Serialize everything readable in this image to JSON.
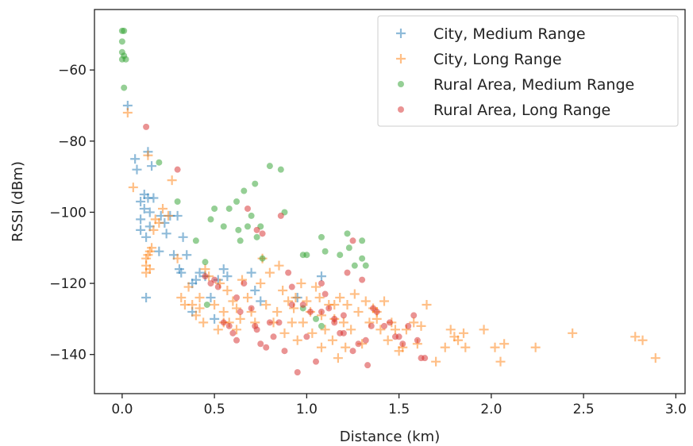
{
  "chart_data": {
    "type": "scatter",
    "title": "",
    "xlabel": "Distance (km)",
    "ylabel": "RSSI (dBm)",
    "xlim": [
      -0.15,
      3.05
    ],
    "ylim": [
      -151,
      -43
    ],
    "xticks": [
      0.0,
      0.5,
      1.0,
      1.5,
      2.0,
      2.5,
      3.0
    ],
    "xtick_labels": [
      "0.0",
      "0.5",
      "1.0",
      "1.5",
      "2.0",
      "2.5",
      "3.0"
    ],
    "yticks": [
      -60,
      -80,
      -100,
      -120,
      -140
    ],
    "ytick_labels": [
      "−60",
      "−80",
      "−100",
      "−120",
      "−140"
    ],
    "grid": false,
    "legend_position": "top-right",
    "series": [
      {
        "name": "City, Medium Range",
        "marker": "plus",
        "color": "#1f77b4",
        "points": [
          [
            0.03,
            -70
          ],
          [
            0.07,
            -85
          ],
          [
            0.08,
            -88
          ],
          [
            0.1,
            -97
          ],
          [
            0.1,
            -102
          ],
          [
            0.1,
            -105
          ],
          [
            0.12,
            -95
          ],
          [
            0.12,
            -99
          ],
          [
            0.13,
            -107
          ],
          [
            0.14,
            -96
          ],
          [
            0.15,
            -100
          ],
          [
            0.15,
            -104
          ],
          [
            0.16,
            -87
          ],
          [
            0.14,
            -83
          ],
          [
            0.17,
            -96
          ],
          [
            0.13,
            -124
          ],
          [
            0.2,
            -111
          ],
          [
            0.21,
            -101
          ],
          [
            0.23,
            -103
          ],
          [
            0.24,
            -106
          ],
          [
            0.26,
            -101
          ],
          [
            0.28,
            -112
          ],
          [
            0.3,
            -101
          ],
          [
            0.31,
            -116
          ],
          [
            0.33,
            -107
          ],
          [
            0.35,
            -112
          ],
          [
            0.38,
            -120
          ],
          [
            0.4,
            -119
          ],
          [
            0.42,
            -117
          ],
          [
            0.45,
            -118
          ],
          [
            0.48,
            -124
          ],
          [
            0.5,
            -130
          ],
          [
            0.52,
            -119
          ],
          [
            0.55,
            -116
          ],
          [
            0.57,
            -118
          ],
          [
            0.7,
            -117
          ],
          [
            0.72,
            -122
          ],
          [
            0.75,
            -125
          ],
          [
            1.08,
            -118
          ],
          [
            0.95,
            -124
          ],
          [
            0.38,
            -128
          ],
          [
            0.32,
            -117
          ]
        ]
      },
      {
        "name": "City, Long Range",
        "marker": "plus",
        "color": "#ff7f0e",
        "points": [
          [
            0.03,
            -72
          ],
          [
            0.06,
            -93
          ],
          [
            0.13,
            -115
          ],
          [
            0.13,
            -113
          ],
          [
            0.13,
            -117
          ],
          [
            0.14,
            -112
          ],
          [
            0.15,
            -111
          ],
          [
            0.15,
            -116
          ],
          [
            0.16,
            -110
          ],
          [
            0.17,
            -105
          ],
          [
            0.18,
            -102
          ],
          [
            0.2,
            -103
          ],
          [
            0.22,
            -99
          ],
          [
            0.25,
            -101
          ],
          [
            0.27,
            -91
          ],
          [
            0.14,
            -84
          ],
          [
            0.3,
            -113
          ],
          [
            0.32,
            -124
          ],
          [
            0.34,
            -126
          ],
          [
            0.36,
            -121
          ],
          [
            0.38,
            -126
          ],
          [
            0.4,
            -129
          ],
          [
            0.42,
            -124
          ],
          [
            0.44,
            -131
          ],
          [
            0.45,
            -116
          ],
          [
            0.47,
            -118
          ],
          [
            0.5,
            -126
          ],
          [
            0.52,
            -133
          ],
          [
            0.53,
            -120
          ],
          [
            0.55,
            -128
          ],
          [
            0.57,
            -122
          ],
          [
            0.58,
            -131
          ],
          [
            0.6,
            -125
          ],
          [
            0.62,
            -127
          ],
          [
            0.64,
            -130
          ],
          [
            0.65,
            -119
          ],
          [
            0.68,
            -124
          ],
          [
            0.7,
            -128
          ],
          [
            0.72,
            -131
          ],
          [
            0.75,
            -120
          ],
          [
            0.76,
            -113
          ],
          [
            0.78,
            -126
          ],
          [
            0.8,
            -117
          ],
          [
            0.82,
            -131
          ],
          [
            0.84,
            -128
          ],
          [
            0.85,
            -115
          ],
          [
            0.87,
            -122
          ],
          [
            0.88,
            -134
          ],
          [
            0.9,
            -125
          ],
          [
            0.92,
            -131
          ],
          [
            0.94,
            -124
          ],
          [
            0.95,
            -136
          ],
          [
            0.97,
            -120
          ],
          [
            0.98,
            -131
          ],
          [
            1.0,
            -125
          ],
          [
            1.02,
            -128
          ],
          [
            1.03,
            -134
          ],
          [
            1.05,
            -121
          ],
          [
            1.07,
            -124
          ],
          [
            1.08,
            -129
          ],
          [
            1.1,
            -133
          ],
          [
            1.12,
            -126
          ],
          [
            1.14,
            -136
          ],
          [
            1.15,
            -130
          ],
          [
            1.17,
            -141
          ],
          [
            1.18,
            -124
          ],
          [
            1.2,
            -131
          ],
          [
            1.21,
            -138
          ],
          [
            1.22,
            -126
          ],
          [
            1.24,
            -133
          ],
          [
            1.26,
            -123
          ],
          [
            1.28,
            -128
          ],
          [
            1.3,
            -137
          ],
          [
            1.32,
            -125
          ],
          [
            1.34,
            -131
          ],
          [
            1.36,
            -127
          ],
          [
            1.38,
            -128
          ],
          [
            1.4,
            -133
          ],
          [
            1.42,
            -125
          ],
          [
            1.44,
            -136
          ],
          [
            1.46,
            -131
          ],
          [
            1.48,
            -133
          ],
          [
            1.5,
            -139
          ],
          [
            1.52,
            -138
          ],
          [
            1.54,
            -133
          ],
          [
            1.58,
            -131
          ],
          [
            1.6,
            -137
          ],
          [
            1.62,
            -132
          ],
          [
            1.65,
            -126
          ],
          [
            1.7,
            -142
          ],
          [
            1.75,
            -138
          ],
          [
            1.78,
            -133
          ],
          [
            1.8,
            -135
          ],
          [
            1.82,
            -136
          ],
          [
            1.85,
            -134
          ],
          [
            1.86,
            -138
          ],
          [
            1.96,
            -133
          ],
          [
            2.02,
            -138
          ],
          [
            2.05,
            -142
          ],
          [
            2.07,
            -137
          ],
          [
            2.24,
            -138
          ],
          [
            2.44,
            -134
          ],
          [
            2.78,
            -135
          ],
          [
            2.82,
            -136
          ],
          [
            2.89,
            -141
          ],
          [
            1.15,
            -126
          ],
          [
            1.38,
            -130
          ],
          [
            0.62,
            -133
          ],
          [
            0.42,
            -127
          ],
          [
            0.55,
            -131
          ],
          [
            1.08,
            -138
          ],
          [
            0.93,
            -127
          ]
        ]
      },
      {
        "name": "Rural Area, Medium Range",
        "marker": "circle",
        "color": "#2ca02c",
        "points": [
          [
            0.0,
            -49
          ],
          [
            0.01,
            -49
          ],
          [
            0.0,
            -52
          ],
          [
            0.0,
            -55
          ],
          [
            0.01,
            -56
          ],
          [
            0.02,
            -57
          ],
          [
            0.0,
            -57
          ],
          [
            0.01,
            -65
          ],
          [
            0.2,
            -86
          ],
          [
            0.3,
            -97
          ],
          [
            0.4,
            -108
          ],
          [
            0.45,
            -114
          ],
          [
            0.48,
            -102
          ],
          [
            0.5,
            -99
          ],
          [
            0.55,
            -104
          ],
          [
            0.58,
            -99
          ],
          [
            0.62,
            -97
          ],
          [
            0.63,
            -105
          ],
          [
            0.64,
            -108
          ],
          [
            0.66,
            -94
          ],
          [
            0.68,
            -104
          ],
          [
            0.7,
            -101
          ],
          [
            0.72,
            -92
          ],
          [
            0.73,
            -107
          ],
          [
            0.75,
            -104
          ],
          [
            0.76,
            -113
          ],
          [
            0.8,
            -87
          ],
          [
            0.86,
            -88
          ],
          [
            0.88,
            -100
          ],
          [
            0.98,
            -112
          ],
          [
            1.0,
            -112
          ],
          [
            1.08,
            -107
          ],
          [
            1.1,
            -111
          ],
          [
            1.22,
            -106
          ],
          [
            1.23,
            -110
          ],
          [
            1.26,
            -115
          ],
          [
            1.3,
            -108
          ],
          [
            1.3,
            -113
          ],
          [
            1.32,
            -115
          ],
          [
            1.18,
            -112
          ],
          [
            0.98,
            -127
          ],
          [
            1.05,
            -130
          ],
          [
            1.08,
            -132
          ],
          [
            0.46,
            -126
          ]
        ]
      },
      {
        "name": "Rural Area, Long Range",
        "marker": "circle",
        "color": "#d62728",
        "points": [
          [
            0.13,
            -76
          ],
          [
            0.3,
            -88
          ],
          [
            0.45,
            -118
          ],
          [
            0.48,
            -120
          ],
          [
            0.5,
            -119
          ],
          [
            0.52,
            -121
          ],
          [
            0.55,
            -131
          ],
          [
            0.58,
            -132
          ],
          [
            0.6,
            -134
          ],
          [
            0.62,
            -136
          ],
          [
            0.64,
            -128
          ],
          [
            0.66,
            -120
          ],
          [
            0.68,
            -99
          ],
          [
            0.7,
            -127
          ],
          [
            0.72,
            -132
          ],
          [
            0.73,
            -133
          ],
          [
            0.75,
            -137
          ],
          [
            0.76,
            -106
          ],
          [
            0.78,
            -138
          ],
          [
            0.8,
            -131
          ],
          [
            0.82,
            -135
          ],
          [
            0.85,
            -131
          ],
          [
            0.88,
            -139
          ],
          [
            0.9,
            -117
          ],
          [
            0.92,
            -126
          ],
          [
            0.95,
            -145
          ],
          [
            0.98,
            -126
          ],
          [
            1.0,
            -135
          ],
          [
            1.02,
            -128
          ],
          [
            1.05,
            -142
          ],
          [
            1.08,
            -120
          ],
          [
            1.1,
            -123
          ],
          [
            1.12,
            -127
          ],
          [
            1.15,
            -131
          ],
          [
            1.18,
            -134
          ],
          [
            1.2,
            -134
          ],
          [
            1.22,
            -117
          ],
          [
            1.25,
            -108
          ],
          [
            1.28,
            -137
          ],
          [
            1.3,
            -119
          ],
          [
            1.32,
            -136
          ],
          [
            1.35,
            -132
          ],
          [
            1.38,
            -128
          ],
          [
            1.42,
            -132
          ],
          [
            1.45,
            -131
          ],
          [
            1.48,
            -135
          ],
          [
            1.5,
            -135
          ],
          [
            1.52,
            -137
          ],
          [
            1.55,
            -132
          ],
          [
            1.58,
            -129
          ],
          [
            1.6,
            -136
          ],
          [
            1.62,
            -141
          ],
          [
            1.64,
            -141
          ],
          [
            1.33,
            -143
          ],
          [
            1.25,
            -139
          ],
          [
            0.62,
            -124
          ],
          [
            0.92,
            -121
          ],
          [
            1.15,
            -130
          ],
          [
            1.2,
            -129
          ],
          [
            0.73,
            -105
          ],
          [
            0.86,
            -101
          ],
          [
            1.36,
            -127
          ],
          [
            1.08,
            -128
          ]
        ]
      }
    ]
  }
}
